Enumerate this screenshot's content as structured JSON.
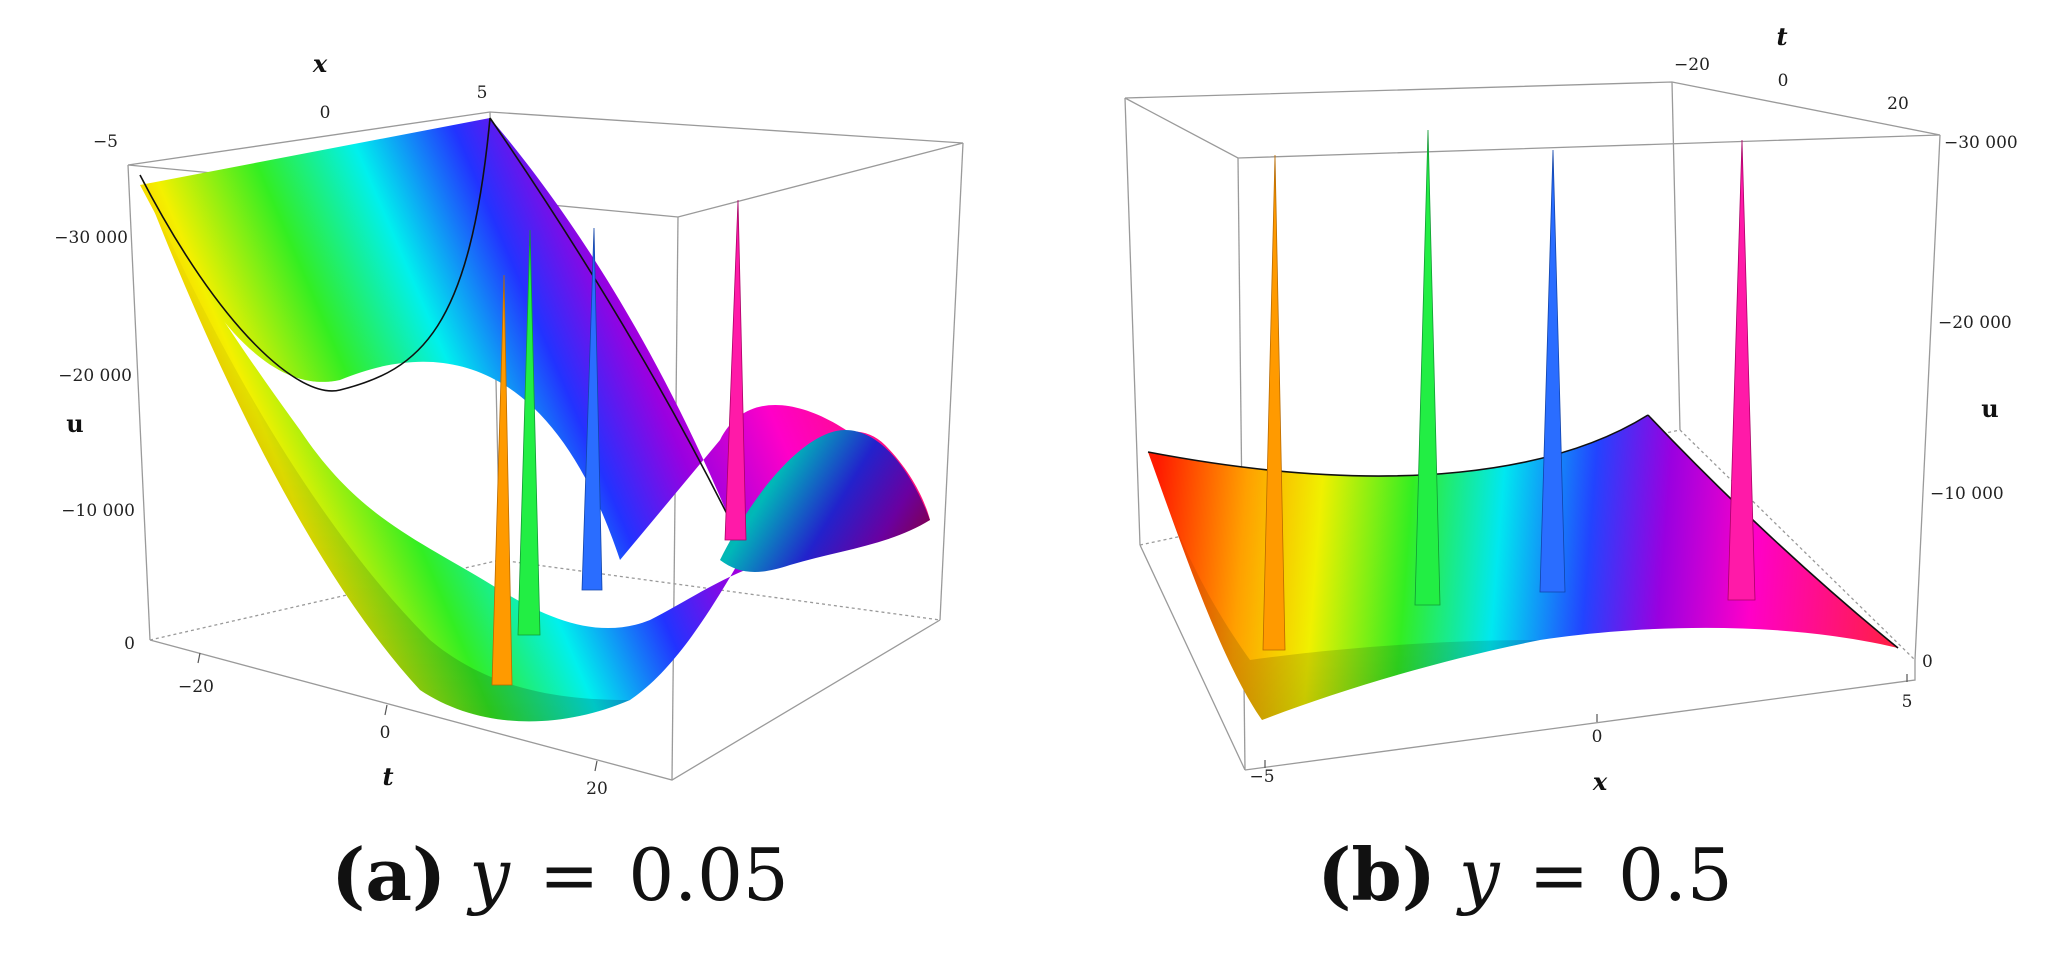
{
  "chart_data": [
    {
      "type": "surface3d",
      "panel_label": "(a)",
      "caption_var": "y",
      "caption_eq": "=",
      "caption_value": "0.05",
      "axes": {
        "x": {
          "label": "x",
          "ticks": [
            "−5",
            "0",
            "5"
          ],
          "range": [
            -5,
            5
          ]
        },
        "t": {
          "label": "t",
          "ticks": [
            "−20",
            "0",
            "20"
          ],
          "range": [
            -25,
            25
          ]
        },
        "u": {
          "label": "u",
          "ticks": [
            "0",
            "−10 000",
            "−20 000",
            "−30 000"
          ],
          "range": [
            0,
            -35000
          ]
        }
      },
      "surface": {
        "shape": "parabolic trough with four sharp spikes",
        "colormap": "hue rainbow"
      },
      "spikes": [
        {
          "color": "#ff9a00"
        },
        {
          "color": "#22ee44"
        },
        {
          "color": "#2a6dff"
        },
        {
          "color": "#ff1aa8"
        }
      ]
    },
    {
      "type": "surface3d",
      "panel_label": "(b)",
      "caption_var": "y",
      "caption_eq": "=",
      "caption_value": "0.5",
      "axes": {
        "x": {
          "label": "x",
          "ticks": [
            "−5",
            "0",
            "5"
          ],
          "range": [
            -5,
            5
          ]
        },
        "t": {
          "label": "t",
          "ticks": [
            "−20",
            "0",
            "20"
          ],
          "range": [
            -25,
            25
          ]
        },
        "u": {
          "label": "u",
          "ticks": [
            "0",
            "−10 000",
            "−20 000",
            "−30 000"
          ],
          "range": [
            0,
            -30000
          ]
        }
      },
      "surface": {
        "shape": "gently curved sheet with four sharp spikes",
        "colormap": "hue rainbow"
      },
      "spikes": [
        {
          "color": "#ff9a00"
        },
        {
          "color": "#22ee44"
        },
        {
          "color": "#2a6dff"
        },
        {
          "color": "#ff1aa8"
        }
      ]
    }
  ]
}
